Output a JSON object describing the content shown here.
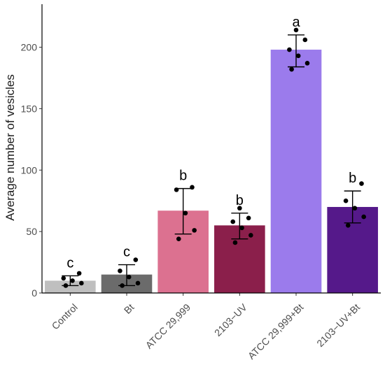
{
  "chart_data": {
    "type": "bar",
    "title": "",
    "xlabel": "",
    "ylabel": "Average number of vesicles",
    "ylim": [
      0,
      235
    ],
    "yticks": [
      0,
      50,
      100,
      150,
      200
    ],
    "grid": false,
    "legend": "none",
    "categories": [
      "Control",
      "Bt",
      "ATCC 29,999",
      "2103−UV",
      "ATCC 29,999+Bt",
      "2103−UV+Bt"
    ],
    "values": [
      10,
      15,
      67,
      55,
      198,
      70
    ],
    "error_low": [
      6,
      6,
      48,
      44,
      184,
      57
    ],
    "error_high": [
      14,
      23,
      85,
      65,
      210,
      83
    ],
    "significance": [
      "c",
      "c",
      "b",
      "b",
      "a",
      "b"
    ],
    "colors": [
      "#bfbfbf",
      "#6b6b6b",
      "#dc7190",
      "#8b1f4b",
      "#9b7bec",
      "#55198a"
    ],
    "points": [
      [
        6,
        8,
        10,
        12,
        16
      ],
      [
        6,
        8,
        13,
        18,
        27
      ],
      [
        44,
        51,
        65,
        84,
        86
      ],
      [
        41,
        47,
        53,
        58,
        61,
        69
      ],
      [
        182,
        187,
        193,
        198,
        206,
        214
      ],
      [
        55,
        62,
        69,
        75,
        89
      ]
    ]
  }
}
